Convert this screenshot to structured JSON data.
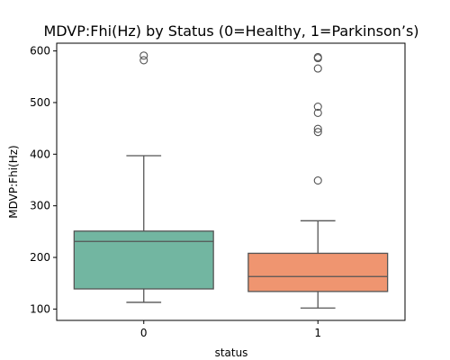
{
  "chart_data": {
    "type": "box",
    "title": "MDVP:Fhi(Hz) by Status (0=Healthy, 1=Parkinson’s)",
    "xlabel": "status",
    "ylabel": "MDVP:Fhi(Hz)",
    "ylim": [
      78,
      615
    ],
    "yticks": [
      100,
      200,
      300,
      400,
      500,
      600
    ],
    "grid": false,
    "legend": "none",
    "categories": [
      "0",
      "1"
    ],
    "boxes": [
      {
        "category": "0",
        "color": "#72b6a1",
        "whisker_low": 113,
        "q1": 139,
        "median": 231,
        "q3": 251,
        "whisker_high": 397,
        "outliers": [
          591,
          582
        ]
      },
      {
        "category": "1",
        "color": "#ef9570",
        "whisker_low": 102,
        "q1": 134,
        "median": 163,
        "q3": 208,
        "whisker_high": 271,
        "outliers": [
          588,
          586,
          566,
          492,
          480,
          449,
          443,
          349
        ]
      }
    ],
    "line_color": "#555555",
    "outlier_edge_color": "#555555"
  }
}
